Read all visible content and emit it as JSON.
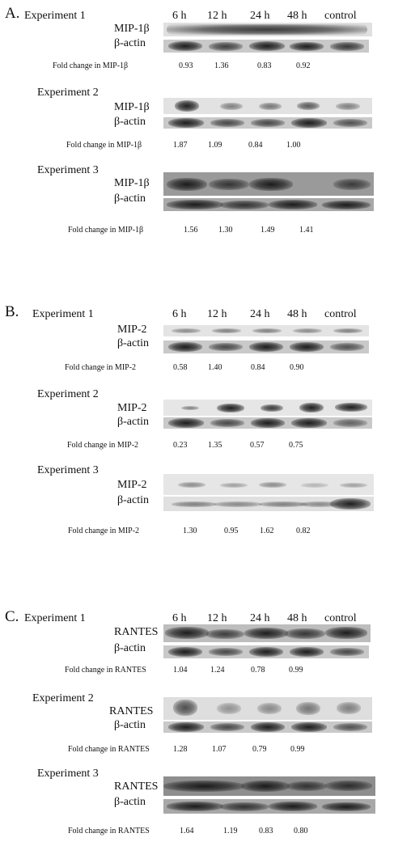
{
  "timepoints": [
    "6 h",
    "12 h",
    "24 h",
    "48 h",
    "control"
  ],
  "actin_label": "β-actin",
  "panels": [
    {
      "letter": "A.",
      "protein": "MIP-1β",
      "fold_label": "Fold change in MIP-1β",
      "experiments": [
        {
          "label": "Experiment 1",
          "fold": [
            "0.93",
            "1.36",
            "0.83",
            "0.92"
          ]
        },
        {
          "label": "Experiment 2",
          "fold": [
            "1.87",
            "1.09",
            "0.84",
            "1.00"
          ]
        },
        {
          "label": "Experiment 3",
          "fold": [
            "1.56",
            "1.30",
            "1.49",
            "1.41"
          ]
        }
      ]
    },
    {
      "letter": "B.",
      "protein": "MIP-2",
      "fold_label": "Fold change in MIP-2",
      "experiments": [
        {
          "label": "Experiment 1",
          "fold": [
            "0.58",
            "1.40",
            "0.84",
            "0.90"
          ]
        },
        {
          "label": "Experiment 2",
          "fold": [
            "0.23",
            "1.35",
            "0.57",
            "0.75"
          ]
        },
        {
          "label": "Experiment 3",
          "fold": [
            "1.30",
            "0.95",
            "1.62",
            "0.82"
          ]
        }
      ]
    },
    {
      "letter": "C.",
      "protein": "RANTES",
      "fold_label": "Fold change in RANTES",
      "experiments": [
        {
          "label": "Experiment 1",
          "fold": [
            "1.04",
            "1.24",
            "0.78",
            "0.99"
          ]
        },
        {
          "label": "Experiment 2",
          "fold": [
            "1.28",
            "1.07",
            "0.79",
            "0.99"
          ]
        },
        {
          "label": "Experiment 3",
          "fold": [
            "1.64",
            "1.19",
            "0.83",
            "0.80"
          ]
        }
      ]
    }
  ]
}
